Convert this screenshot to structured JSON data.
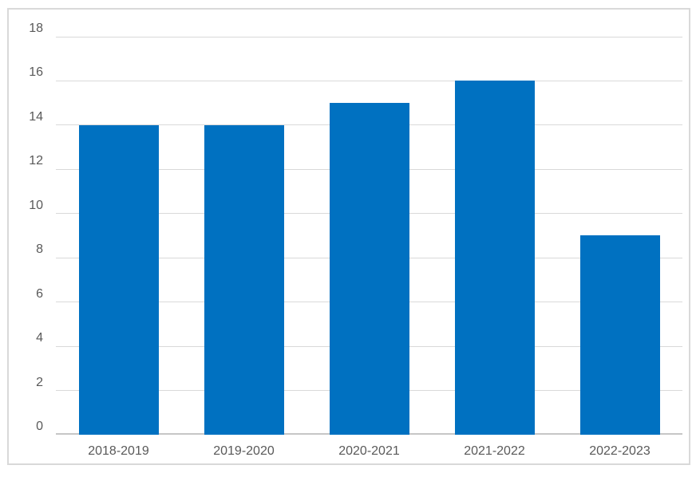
{
  "chart_data": {
    "type": "bar",
    "categories": [
      "2018-2019",
      "2019-2020",
      "2020-2021",
      "2021-2022",
      "2022-2023"
    ],
    "values": [
      14,
      14,
      15,
      16,
      9
    ],
    "yticks": [
      0,
      2,
      4,
      6,
      8,
      10,
      12,
      14,
      16,
      18
    ],
    "ylim": [
      0,
      18
    ],
    "grid": true,
    "legend": "none",
    "bar_color": "#0071C1",
    "gridline_color": "#D9D9D9",
    "axis_line_color": "#C6C6C6",
    "tick_label_color": "#595959",
    "frame_border_color": "#D9D9D9"
  }
}
